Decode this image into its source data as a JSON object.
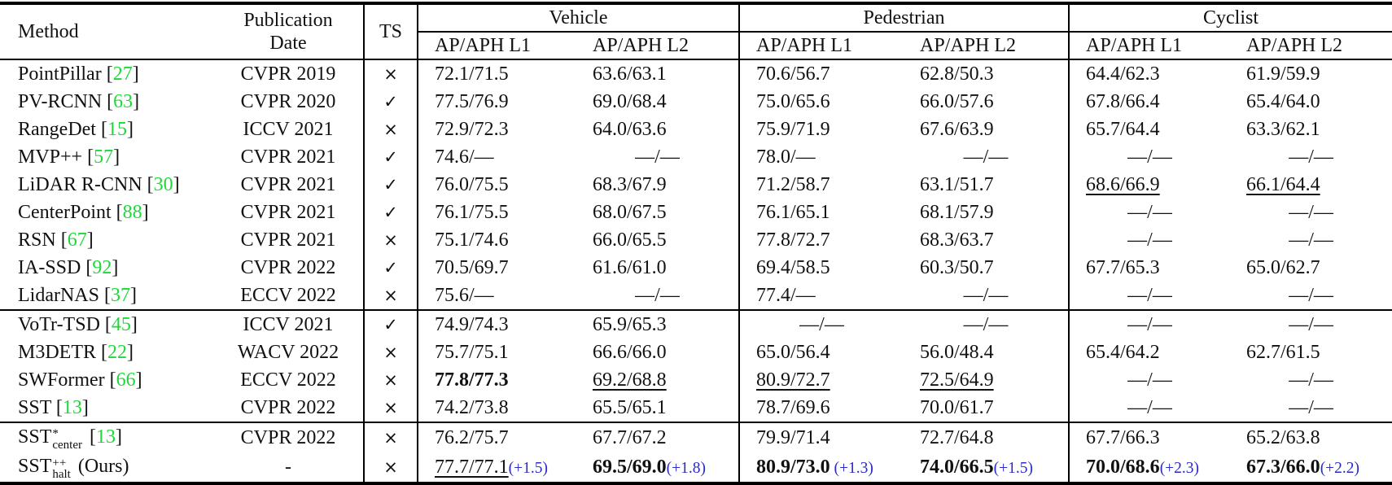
{
  "colors": {
    "citation_green": "#1ed83a",
    "delta_blue": "#2c2cc4",
    "text": "#111111",
    "rule": "#000000"
  },
  "table": {
    "header": {
      "method": "Method",
      "publication_line1": "Publication",
      "publication_line2": "Date",
      "ts": "TS",
      "groups": [
        {
          "label": "Vehicle"
        },
        {
          "label": "Pedestrian"
        },
        {
          "label": "Cyclist"
        }
      ],
      "subheader_l1": "AP/APH L1",
      "subheader_l2": "AP/APH L2"
    },
    "sections": [
      {
        "rows": [
          {
            "method": {
              "name": "PointPillar",
              "cite": "27"
            },
            "pub": "CVPR 2019",
            "ts": "×",
            "cells": [
              "72.1/71.5",
              "63.6/63.1",
              "70.6/56.7",
              "62.8/50.3",
              "64.4/62.3",
              "61.9/59.9"
            ]
          },
          {
            "method": {
              "name": "PV-RCNN",
              "cite": "63"
            },
            "pub": "CVPR 2020",
            "ts": "✓",
            "cells": [
              "77.5/76.9",
              "69.0/68.4",
              "75.0/65.6",
              "66.0/57.6",
              "67.8/66.4",
              "65.4/64.0"
            ]
          },
          {
            "method": {
              "name": "RangeDet",
              "cite": "15"
            },
            "pub": "ICCV 2021",
            "ts": "×",
            "cells": [
              "72.9/72.3",
              "64.0/63.6",
              "75.9/71.9",
              "67.6/63.9",
              "65.7/64.4",
              "63.3/62.1"
            ]
          },
          {
            "method": {
              "name": "MVP++",
              "cite": "57"
            },
            "pub": "CVPR 2021",
            "ts": "✓",
            "cells": [
              "74.6/—",
              "—/—",
              "78.0/—",
              "—/—",
              "—/—",
              "—/—"
            ]
          },
          {
            "method": {
              "name": "LiDAR R-CNN",
              "cite": "30"
            },
            "pub": "CVPR 2021",
            "ts": "✓",
            "cells": [
              "76.0/75.5",
              "68.3/67.9",
              "71.2/58.7",
              "63.1/51.7",
              {
                "v": "68.6/66.9",
                "underline": true
              },
              {
                "v": "66.1/64.4",
                "underline": true
              }
            ]
          },
          {
            "method": {
              "name": "CenterPoint",
              "cite": "88"
            },
            "pub": "CVPR 2021",
            "ts": "✓",
            "cells": [
              "76.1/75.5",
              "68.0/67.5",
              "76.1/65.1",
              "68.1/57.9",
              "—/—",
              "—/—"
            ]
          },
          {
            "method": {
              "name": "RSN",
              "cite": "67"
            },
            "pub": "CVPR 2021",
            "ts": "×",
            "cells": [
              "75.1/74.6",
              "66.0/65.5",
              "77.8/72.7",
              "68.3/63.7",
              "—/—",
              "—/—"
            ]
          },
          {
            "method": {
              "name": "IA-SSD",
              "cite": "92"
            },
            "pub": "CVPR 2022",
            "ts": "✓",
            "cells": [
              "70.5/69.7",
              "61.6/61.0",
              "69.4/58.5",
              "60.3/50.7",
              "67.7/65.3",
              "65.0/62.7"
            ]
          },
          {
            "method": {
              "name": "LidarNAS",
              "cite": "37"
            },
            "pub": "ECCV 2022",
            "ts": "×",
            "cells": [
              "75.6/—",
              "—/—",
              "77.4/—",
              "—/—",
              "—/—",
              "—/—"
            ]
          }
        ]
      },
      {
        "rows": [
          {
            "method": {
              "name": "VoTr-TSD",
              "cite": "45"
            },
            "pub": "ICCV 2021",
            "ts": "✓",
            "cells": [
              "74.9/74.3",
              "65.9/65.3",
              "—/—",
              "—/—",
              "—/—",
              "—/—"
            ]
          },
          {
            "method": {
              "name": "M3DETR",
              "cite": "22"
            },
            "pub": "WACV 2022",
            "ts": "×",
            "cells": [
              "75.7/75.1",
              "66.6/66.0",
              "65.0/56.4",
              "56.0/48.4",
              "65.4/64.2",
              "62.7/61.5"
            ]
          },
          {
            "method": {
              "name": "SWFormer",
              "cite": "66"
            },
            "pub": "ECCV 2022",
            "ts": "×",
            "cells": [
              {
                "v": "77.8/77.3",
                "bold": true
              },
              {
                "v": "69.2/68.8",
                "underline": true
              },
              {
                "v": "80.9/72.7",
                "underline": true
              },
              {
                "v": "72.5/64.9",
                "underline": true
              },
              "—/—",
              "—/—"
            ]
          },
          {
            "method": {
              "name": "SST",
              "cite": "13"
            },
            "pub": "CVPR 2022",
            "ts": "×",
            "cells": [
              "74.2/73.8",
              "65.5/65.1",
              "78.7/69.6",
              "70.0/61.7",
              "—/—",
              "—/—"
            ]
          }
        ]
      },
      {
        "rows": [
          {
            "method": {
              "name": "SST",
              "sup": "*",
              "sub": "center",
              "cite": "13"
            },
            "pub": "CVPR 2022",
            "ts": "×",
            "cells": [
              "76.2/75.7",
              "67.7/67.2",
              "79.9/71.4",
              "72.7/64.8",
              "67.7/66.3",
              "65.2/63.8"
            ]
          },
          {
            "method": {
              "name": "SST",
              "sup": "++",
              "sub": "halt",
              "suffix": " (Ours)"
            },
            "pub": "-",
            "ts": "×",
            "cells": [
              {
                "v": "77.7/77.1",
                "underline": true,
                "delta": "(+1.5)"
              },
              {
                "v": "69.5/69.0",
                "bold": true,
                "delta": "(+1.8)"
              },
              {
                "v": "80.9/73.0",
                "bold": true,
                "delta": " (+1.3)"
              },
              {
                "v": "74.0/66.5",
                "bold": true,
                "delta": "(+1.5)"
              },
              {
                "v": "70.0/68.6",
                "bold": true,
                "delta": "(+2.3)"
              },
              {
                "v": "67.3/66.0",
                "bold": true,
                "delta": "(+2.2)"
              }
            ]
          }
        ]
      }
    ]
  }
}
